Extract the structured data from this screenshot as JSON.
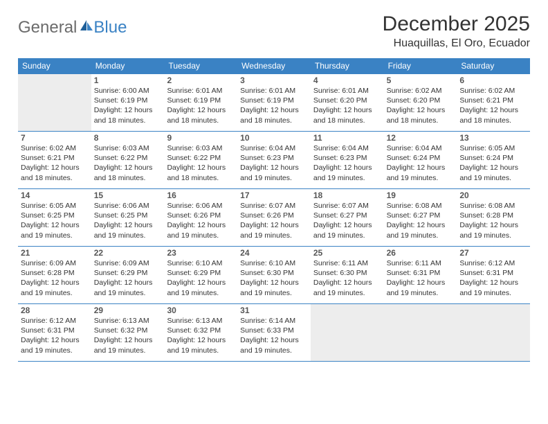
{
  "logo": {
    "general": "General",
    "blue": "Blue"
  },
  "title": "December 2025",
  "location": "Huaquillas, El Oro, Ecuador",
  "colors": {
    "accent": "#3a82c4",
    "empty_bg": "#ededed",
    "text": "#333333",
    "logo_gray": "#6b6b6b"
  },
  "day_headers": [
    "Sunday",
    "Monday",
    "Tuesday",
    "Wednesday",
    "Thursday",
    "Friday",
    "Saturday"
  ],
  "weeks": [
    [
      {
        "empty": true
      },
      {
        "num": "1",
        "sunrise": "Sunrise: 6:00 AM",
        "sunset": "Sunset: 6:19 PM",
        "daylight1": "Daylight: 12 hours",
        "daylight2": "and 18 minutes."
      },
      {
        "num": "2",
        "sunrise": "Sunrise: 6:01 AM",
        "sunset": "Sunset: 6:19 PM",
        "daylight1": "Daylight: 12 hours",
        "daylight2": "and 18 minutes."
      },
      {
        "num": "3",
        "sunrise": "Sunrise: 6:01 AM",
        "sunset": "Sunset: 6:19 PM",
        "daylight1": "Daylight: 12 hours",
        "daylight2": "and 18 minutes."
      },
      {
        "num": "4",
        "sunrise": "Sunrise: 6:01 AM",
        "sunset": "Sunset: 6:20 PM",
        "daylight1": "Daylight: 12 hours",
        "daylight2": "and 18 minutes."
      },
      {
        "num": "5",
        "sunrise": "Sunrise: 6:02 AM",
        "sunset": "Sunset: 6:20 PM",
        "daylight1": "Daylight: 12 hours",
        "daylight2": "and 18 minutes."
      },
      {
        "num": "6",
        "sunrise": "Sunrise: 6:02 AM",
        "sunset": "Sunset: 6:21 PM",
        "daylight1": "Daylight: 12 hours",
        "daylight2": "and 18 minutes."
      }
    ],
    [
      {
        "num": "7",
        "sunrise": "Sunrise: 6:02 AM",
        "sunset": "Sunset: 6:21 PM",
        "daylight1": "Daylight: 12 hours",
        "daylight2": "and 18 minutes."
      },
      {
        "num": "8",
        "sunrise": "Sunrise: 6:03 AM",
        "sunset": "Sunset: 6:22 PM",
        "daylight1": "Daylight: 12 hours",
        "daylight2": "and 18 minutes."
      },
      {
        "num": "9",
        "sunrise": "Sunrise: 6:03 AM",
        "sunset": "Sunset: 6:22 PM",
        "daylight1": "Daylight: 12 hours",
        "daylight2": "and 18 minutes."
      },
      {
        "num": "10",
        "sunrise": "Sunrise: 6:04 AM",
        "sunset": "Sunset: 6:23 PM",
        "daylight1": "Daylight: 12 hours",
        "daylight2": "and 19 minutes."
      },
      {
        "num": "11",
        "sunrise": "Sunrise: 6:04 AM",
        "sunset": "Sunset: 6:23 PM",
        "daylight1": "Daylight: 12 hours",
        "daylight2": "and 19 minutes."
      },
      {
        "num": "12",
        "sunrise": "Sunrise: 6:04 AM",
        "sunset": "Sunset: 6:24 PM",
        "daylight1": "Daylight: 12 hours",
        "daylight2": "and 19 minutes."
      },
      {
        "num": "13",
        "sunrise": "Sunrise: 6:05 AM",
        "sunset": "Sunset: 6:24 PM",
        "daylight1": "Daylight: 12 hours",
        "daylight2": "and 19 minutes."
      }
    ],
    [
      {
        "num": "14",
        "sunrise": "Sunrise: 6:05 AM",
        "sunset": "Sunset: 6:25 PM",
        "daylight1": "Daylight: 12 hours",
        "daylight2": "and 19 minutes."
      },
      {
        "num": "15",
        "sunrise": "Sunrise: 6:06 AM",
        "sunset": "Sunset: 6:25 PM",
        "daylight1": "Daylight: 12 hours",
        "daylight2": "and 19 minutes."
      },
      {
        "num": "16",
        "sunrise": "Sunrise: 6:06 AM",
        "sunset": "Sunset: 6:26 PM",
        "daylight1": "Daylight: 12 hours",
        "daylight2": "and 19 minutes."
      },
      {
        "num": "17",
        "sunrise": "Sunrise: 6:07 AM",
        "sunset": "Sunset: 6:26 PM",
        "daylight1": "Daylight: 12 hours",
        "daylight2": "and 19 minutes."
      },
      {
        "num": "18",
        "sunrise": "Sunrise: 6:07 AM",
        "sunset": "Sunset: 6:27 PM",
        "daylight1": "Daylight: 12 hours",
        "daylight2": "and 19 minutes."
      },
      {
        "num": "19",
        "sunrise": "Sunrise: 6:08 AM",
        "sunset": "Sunset: 6:27 PM",
        "daylight1": "Daylight: 12 hours",
        "daylight2": "and 19 minutes."
      },
      {
        "num": "20",
        "sunrise": "Sunrise: 6:08 AM",
        "sunset": "Sunset: 6:28 PM",
        "daylight1": "Daylight: 12 hours",
        "daylight2": "and 19 minutes."
      }
    ],
    [
      {
        "num": "21",
        "sunrise": "Sunrise: 6:09 AM",
        "sunset": "Sunset: 6:28 PM",
        "daylight1": "Daylight: 12 hours",
        "daylight2": "and 19 minutes."
      },
      {
        "num": "22",
        "sunrise": "Sunrise: 6:09 AM",
        "sunset": "Sunset: 6:29 PM",
        "daylight1": "Daylight: 12 hours",
        "daylight2": "and 19 minutes."
      },
      {
        "num": "23",
        "sunrise": "Sunrise: 6:10 AM",
        "sunset": "Sunset: 6:29 PM",
        "daylight1": "Daylight: 12 hours",
        "daylight2": "and 19 minutes."
      },
      {
        "num": "24",
        "sunrise": "Sunrise: 6:10 AM",
        "sunset": "Sunset: 6:30 PM",
        "daylight1": "Daylight: 12 hours",
        "daylight2": "and 19 minutes."
      },
      {
        "num": "25",
        "sunrise": "Sunrise: 6:11 AM",
        "sunset": "Sunset: 6:30 PM",
        "daylight1": "Daylight: 12 hours",
        "daylight2": "and 19 minutes."
      },
      {
        "num": "26",
        "sunrise": "Sunrise: 6:11 AM",
        "sunset": "Sunset: 6:31 PM",
        "daylight1": "Daylight: 12 hours",
        "daylight2": "and 19 minutes."
      },
      {
        "num": "27",
        "sunrise": "Sunrise: 6:12 AM",
        "sunset": "Sunset: 6:31 PM",
        "daylight1": "Daylight: 12 hours",
        "daylight2": "and 19 minutes."
      }
    ],
    [
      {
        "num": "28",
        "sunrise": "Sunrise: 6:12 AM",
        "sunset": "Sunset: 6:31 PM",
        "daylight1": "Daylight: 12 hours",
        "daylight2": "and 19 minutes."
      },
      {
        "num": "29",
        "sunrise": "Sunrise: 6:13 AM",
        "sunset": "Sunset: 6:32 PM",
        "daylight1": "Daylight: 12 hours",
        "daylight2": "and 19 minutes."
      },
      {
        "num": "30",
        "sunrise": "Sunrise: 6:13 AM",
        "sunset": "Sunset: 6:32 PM",
        "daylight1": "Daylight: 12 hours",
        "daylight2": "and 19 minutes."
      },
      {
        "num": "31",
        "sunrise": "Sunrise: 6:14 AM",
        "sunset": "Sunset: 6:33 PM",
        "daylight1": "Daylight: 12 hours",
        "daylight2": "and 19 minutes."
      },
      {
        "empty": true
      },
      {
        "empty": true
      },
      {
        "empty": true
      }
    ]
  ]
}
